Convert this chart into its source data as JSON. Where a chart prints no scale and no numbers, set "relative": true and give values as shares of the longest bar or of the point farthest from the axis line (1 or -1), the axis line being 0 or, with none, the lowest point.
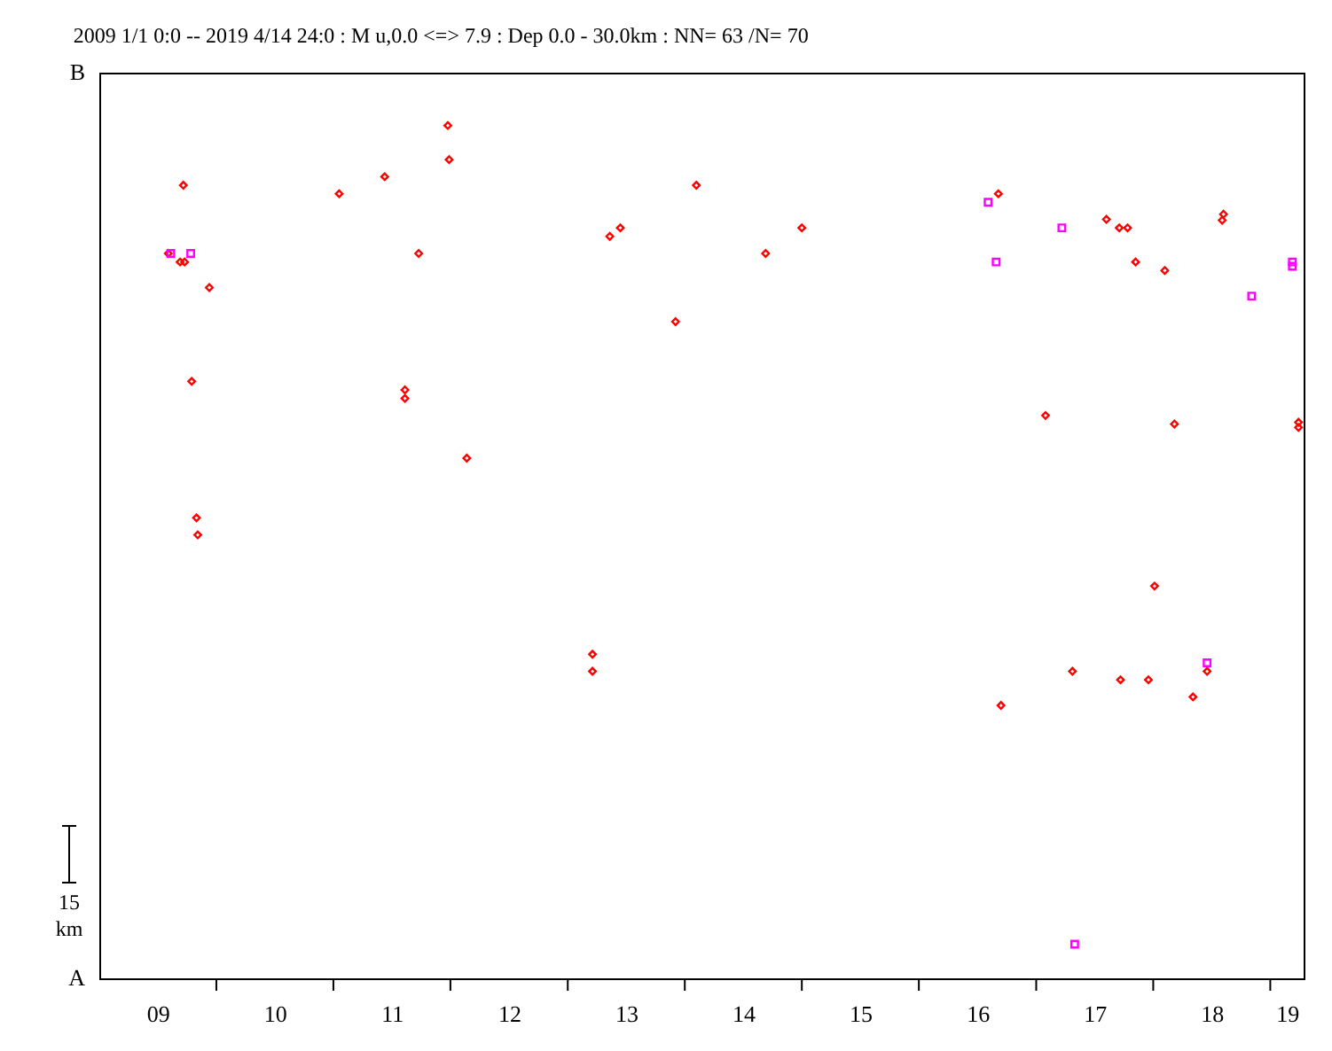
{
  "chart_data": {
    "type": "scatter",
    "title": "2009 1/1 0:0 -- 2019 4/14 24:0  : M u,0.0 <=> 7.9   : Dep 0.0 - 30.0km :  NN= 63 /N= 70",
    "annotations": [
      "15 km",
      "A",
      "B"
    ],
    "relative": true,
    "xlim": [
      "2009-01-01",
      "2019-04-15"
    ],
    "xticks": [
      {
        "value": "2009-07-02",
        "label": "09"
      },
      {
        "value": "2010-07-02",
        "label": "10"
      },
      {
        "value": "2011-07-02",
        "label": "11"
      },
      {
        "value": "2012-07-02",
        "label": "12"
      },
      {
        "value": "2013-07-02",
        "label": "13"
      },
      {
        "value": "2014-07-02",
        "label": "14"
      },
      {
        "value": "2015-07-02",
        "label": "15"
      },
      {
        "value": "2016-07-02",
        "label": "16"
      },
      {
        "value": "2017-07-02",
        "label": "17"
      },
      {
        "value": "2018-07-02",
        "label": "18"
      },
      {
        "value": "2019-02-22",
        "label": "19"
      },
      {
        "value": "2010-01-01",
        "label": null
      },
      {
        "value": "2011-01-01",
        "label": null
      },
      {
        "value": "2012-01-01",
        "label": null
      },
      {
        "value": "2013-01-01",
        "label": null
      },
      {
        "value": "2014-01-01",
        "label": null
      },
      {
        "value": "2015-01-01",
        "label": null
      },
      {
        "value": "2016-01-01",
        "label": null
      },
      {
        "value": "2017-01-01",
        "label": null
      },
      {
        "value": "2018-01-01",
        "label": null
      },
      {
        "value": "2019-01-01",
        "label": null
      }
    ],
    "marker": "diamond",
    "series": [
      {
        "color": "#ff0000",
        "x": [
          "2011-12-24",
          "2011-12-28",
          "2011-06-10",
          "2009-09-20",
          "2014-02-06",
          "2011-01-19",
          "2013-06-14",
          "2013-05-12",
          "2009-08-04",
          "2011-09-24",
          "2009-09-24",
          "2009-09-10",
          "2009-12-10",
          "2013-12-03",
          "2009-10-16",
          "2011-08-12",
          "2011-08-12",
          "2012-02-21",
          "2009-10-31",
          "2009-11-04",
          "2015-01-01",
          "2014-09-10",
          "2016-09-05",
          "2017-08-08",
          "2017-09-17",
          "2017-10-13",
          "2018-08-08",
          "2018-08-04",
          "2017-11-07",
          "2018-02-06",
          "2017-01-30",
          "2018-03-08",
          "2019-03-30",
          "2019-03-30",
          "2013-03-19",
          "2013-03-19",
          "2018-01-05",
          "2017-04-24",
          "2017-09-21",
          "2017-12-17",
          "2018-06-18",
          "2018-05-05",
          "2016-09-13"
        ],
        "values": [
          1.0,
          0.96,
          0.94,
          0.93,
          0.93,
          0.92,
          0.88,
          0.87,
          0.85,
          0.85,
          0.84,
          0.84,
          0.81,
          0.77,
          0.7,
          0.69,
          0.68,
          0.61,
          0.54,
          0.52,
          0.88,
          0.85,
          0.92,
          0.89,
          0.88,
          0.88,
          0.896,
          0.889,
          0.84,
          0.83,
          0.66,
          0.65,
          0.652,
          0.646,
          0.38,
          0.36,
          0.46,
          0.36,
          0.35,
          0.35,
          0.36,
          0.33,
          0.32
        ]
      },
      {
        "color": "#ff00ff",
        "marker": "square",
        "x": [
          "2009-10-13",
          "2009-08-12",
          "2016-08-04",
          "2017-03-22",
          "2016-08-29",
          "2019-03-11",
          "2019-03-11",
          "2018-11-04",
          "2018-06-18",
          "2017-05-01"
        ],
        "values": [
          0.85,
          0.85,
          0.91,
          0.88,
          0.84,
          0.84,
          0.835,
          0.8,
          0.37,
          0.04
        ]
      }
    ]
  }
}
